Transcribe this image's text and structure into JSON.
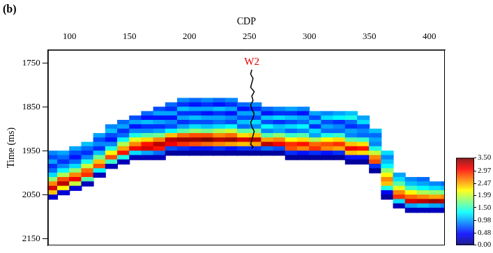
{
  "chart_data": {
    "type": "heatmap",
    "title": "(b)",
    "x_label": "CDP",
    "y_label": "Time (ms)",
    "xlim": [
      82,
      413
    ],
    "xticks": [
      100,
      150,
      200,
      250,
      300,
      350,
      400
    ],
    "ylim": [
      1720,
      2165
    ],
    "yticks": [
      1750,
      1850,
      1950,
      2050,
      2150
    ],
    "grid": false,
    "cells": {
      "cdp_step": 10,
      "time_step": 10,
      "columns": [
        {
          "cdp": 85,
          "top": 1950,
          "values": [
            0.9,
            0.7,
            1.0,
            0.6,
            0.8,
            1.2,
            1.8,
            2.6,
            3.2,
            2.4,
            0.3
          ]
        },
        {
          "cdp": 95,
          "top": 1950,
          "values": [
            1.0,
            0.8,
            0.6,
            0.9,
            1.3,
            1.9,
            2.8,
            3.3,
            2.2,
            0.3
          ]
        },
        {
          "cdp": 105,
          "top": 1940,
          "values": [
            1.0,
            0.7,
            0.5,
            0.8,
            1.2,
            1.8,
            2.6,
            3.1,
            2.0,
            0.3
          ]
        },
        {
          "cdp": 115,
          "top": 1930,
          "values": [
            1.1,
            0.8,
            0.6,
            0.9,
            1.4,
            2.0,
            2.7,
            2.9,
            1.6,
            0.2
          ]
        },
        {
          "cdp": 125,
          "top": 1910,
          "values": [
            1.0,
            0.7,
            0.9,
            0.6,
            1.1,
            1.7,
            2.4,
            2.8,
            1.3,
            0.2
          ]
        },
        {
          "cdp": 135,
          "top": 1890,
          "values": [
            0.9,
            1.1,
            0.7,
            0.5,
            0.9,
            1.4,
            2.2,
            2.8,
            1.5,
            0.2
          ]
        },
        {
          "cdp": 145,
          "top": 1880,
          "values": [
            0.8,
            1.0,
            0.6,
            0.8,
            1.3,
            1.9,
            2.5,
            3.0,
            1.4,
            0.2
          ]
        },
        {
          "cdp": 155,
          "top": 1870,
          "values": [
            0.7,
            1.0,
            0.5,
            0.9,
            1.4,
            2.1,
            2.6,
            3.1,
            1.2,
            0.2
          ]
        },
        {
          "cdp": 165,
          "top": 1860,
          "values": [
            0.8,
            0.5,
            1.1,
            0.6,
            0.9,
            1.6,
            2.3,
            3.0,
            3.2,
            1.0,
            0.2
          ]
        },
        {
          "cdp": 175,
          "top": 1850,
          "values": [
            0.7,
            1.0,
            0.5,
            1.0,
            0.6,
            1.0,
            1.7,
            2.6,
            3.3,
            3.0,
            0.8,
            0.2
          ]
        },
        {
          "cdp": 185,
          "top": 1840,
          "values": [
            0.8,
            0.6,
            1.0,
            0.5,
            0.9,
            0.7,
            1.3,
            2.4,
            3.3,
            3.1,
            0.7,
            0.1
          ]
        },
        {
          "cdp": 195,
          "top": 1830,
          "values": [
            0.9,
            0.6,
            1.1,
            0.6,
            1.0,
            0.6,
            1.0,
            1.6,
            2.7,
            3.4,
            2.9,
            0.6,
            0.1
          ]
        },
        {
          "cdp": 205,
          "top": 1830,
          "values": [
            0.8,
            0.5,
            1.0,
            0.6,
            1.1,
            0.7,
            1.2,
            1.8,
            2.8,
            3.4,
            2.8,
            0.5,
            0.1
          ]
        },
        {
          "cdp": 215,
          "top": 1830,
          "values": [
            0.9,
            0.6,
            1.0,
            0.5,
            1.0,
            0.7,
            1.1,
            1.7,
            2.8,
            3.5,
            2.7,
            0.5,
            0.1
          ]
        },
        {
          "cdp": 225,
          "top": 1830,
          "values": [
            0.8,
            0.5,
            1.1,
            0.6,
            1.0,
            0.8,
            1.2,
            1.9,
            2.6,
            3.3,
            2.6,
            0.6,
            0.1
          ]
        },
        {
          "cdp": 235,
          "top": 1830,
          "values": [
            0.9,
            0.6,
            1.0,
            0.5,
            0.9,
            0.7,
            1.3,
            2.0,
            2.7,
            3.4,
            2.5,
            0.5,
            0.1
          ]
        },
        {
          "cdp": 245,
          "top": 1840,
          "values": [
            0.8,
            0.5,
            1.0,
            0.7,
            1.1,
            0.8,
            1.6,
            2.3,
            3.2,
            2.4,
            0.6,
            0.1
          ]
        },
        {
          "cdp": 255,
          "top": 1840,
          "values": [
            0.9,
            0.6,
            1.0,
            0.7,
            1.2,
            0.9,
            1.7,
            2.4,
            3.3,
            2.5,
            0.6,
            0.1
          ]
        },
        {
          "cdp": 265,
          "top": 1850,
          "values": [
            0.8,
            0.5,
            1.1,
            0.7,
            1.3,
            0.9,
            1.6,
            2.5,
            3.3,
            0.8,
            0.1
          ]
        },
        {
          "cdp": 275,
          "top": 1850,
          "values": [
            0.9,
            0.6,
            1.2,
            0.6,
            1.1,
            1.0,
            1.8,
            2.6,
            3.1,
            0.7,
            0.1
          ]
        },
        {
          "cdp": 285,
          "top": 1850,
          "values": [
            1.0,
            0.6,
            1.1,
            0.7,
            1.2,
            0.8,
            1.5,
            2.2,
            2.9,
            2.8,
            0.6,
            0.1
          ]
        },
        {
          "cdp": 295,
          "top": 1850,
          "values": [
            0.9,
            0.5,
            1.0,
            0.8,
            1.3,
            0.9,
            1.6,
            2.3,
            3.0,
            2.6,
            0.5,
            0.1
          ]
        },
        {
          "cdp": 305,
          "top": 1860,
          "values": [
            1.0,
            0.7,
            1.1,
            0.6,
            1.2,
            1.0,
            1.9,
            2.7,
            2.9,
            0.6,
            0.1
          ]
        },
        {
          "cdp": 315,
          "top": 1860,
          "values": [
            0.9,
            1.2,
            0.7,
            1.0,
            0.8,
            1.4,
            2.2,
            2.8,
            2.6,
            0.5,
            0.1
          ]
        },
        {
          "cdp": 325,
          "top": 1860,
          "values": [
            1.0,
            1.3,
            0.6,
            0.9,
            0.8,
            1.5,
            2.3,
            2.9,
            2.5,
            0.6,
            0.1
          ]
        },
        {
          "cdp": 335,
          "top": 1860,
          "values": [
            1.1,
            1.4,
            0.8,
            0.6,
            1.0,
            0.9,
            1.6,
            2.4,
            3.1,
            2.4,
            0.5,
            0.1
          ]
        },
        {
          "cdp": 345,
          "top": 1870,
          "values": [
            1.0,
            1.2,
            0.7,
            0.9,
            0.8,
            1.5,
            2.3,
            3.0,
            2.3,
            0.5,
            0.1
          ]
        },
        {
          "cdp": 355,
          "top": 1900,
          "values": [
            1.1,
            0.8,
            1.0,
            0.9,
            1.4,
            2.0,
            2.6,
            2.8,
            0.6,
            0.1
          ]
        },
        {
          "cdp": 365,
          "top": 1950,
          "values": [
            1.2,
            0.9,
            1.1,
            1.3,
            1.8,
            2.2,
            2.6,
            2.4,
            1.4,
            0.4,
            0.1
          ]
        },
        {
          "cdp": 375,
          "top": 2000,
          "values": [
            1.0,
            1.2,
            1.6,
            2.1,
            2.6,
            2.9,
            1.2,
            0.2
          ]
        },
        {
          "cdp": 385,
          "top": 2010,
          "values": [
            0.9,
            1.1,
            1.5,
            2.2,
            2.7,
            3.2,
            1.0,
            0.2
          ]
        },
        {
          "cdp": 395,
          "top": 2010,
          "values": [
            0.8,
            1.0,
            1.3,
            1.9,
            2.6,
            3.3,
            1.1,
            0.2
          ]
        },
        {
          "cdp": 405,
          "top": 2020,
          "values": [
            0.9,
            1.2,
            1.8,
            2.5,
            3.4,
            1.0,
            0.2
          ]
        },
        {
          "cdp": 415,
          "top": 2020,
          "values": [
            0.8,
            1.1,
            1.7,
            2.6,
            3.3,
            0.9,
            0.2
          ]
        }
      ]
    },
    "colorbar": {
      "range": [
        0,
        3.5
      ],
      "ticks": [
        {
          "value": 0,
          "label": "0.00"
        },
        {
          "value": 0.48,
          "label": "0.48"
        },
        {
          "value": 0.98,
          "label": "0.98"
        },
        {
          "value": 1.5,
          "label": "1.50"
        },
        {
          "value": 1.99,
          "label": "1.99"
        },
        {
          "value": 2.47,
          "label": "2.47"
        },
        {
          "value": 2.97,
          "label": "2.97"
        },
        {
          "value": 3.5,
          "label": "3.50"
        }
      ]
    },
    "series": [
      {
        "name": "W2",
        "type": "line",
        "color": "#000000",
        "x": [
          252,
          251,
          253,
          252,
          251,
          254,
          252,
          253,
          251,
          252,
          254,
          253,
          251,
          252,
          254,
          253,
          252,
          251,
          253,
          252
        ],
        "y": [
          1765,
          1775,
          1785,
          1795,
          1805,
          1815,
          1825,
          1835,
          1845,
          1855,
          1865,
          1875,
          1885,
          1895,
          1905,
          1915,
          1925,
          1935,
          1940,
          1945
        ]
      }
    ]
  }
}
